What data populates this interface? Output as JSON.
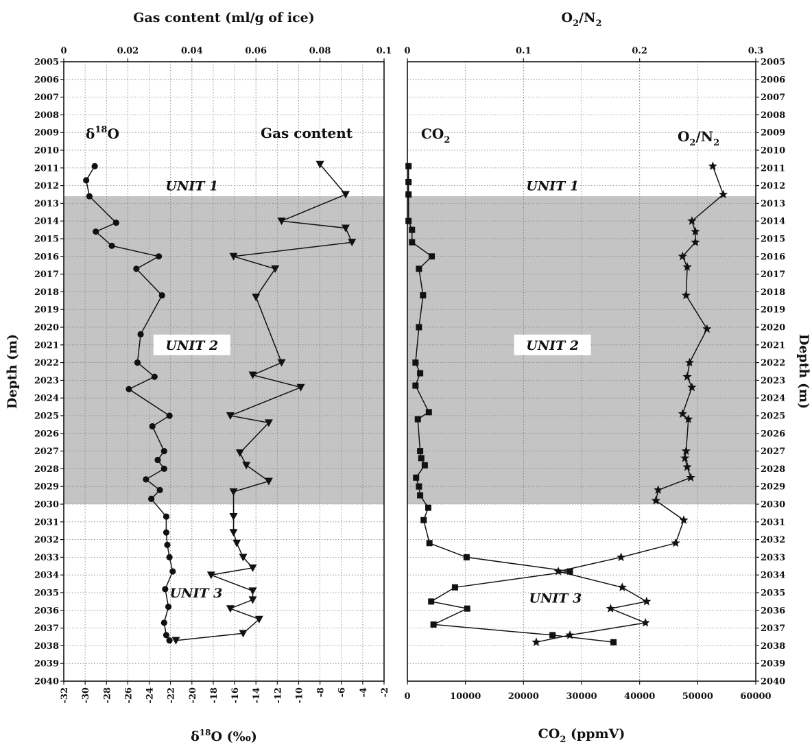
{
  "chart_data": [
    {
      "type": "line",
      "panel": "left",
      "title": "",
      "ylabel": "Depth (m)",
      "ylim": [
        2005,
        2040
      ],
      "yticks": [
        "2005",
        "2006",
        "2007",
        "2008",
        "2009",
        "2010",
        "2011",
        "2012",
        "2013",
        "2014",
        "2015",
        "2016",
        "2017",
        "2018",
        "2019",
        "2020",
        "2021",
        "2022",
        "2023",
        "2024",
        "2025",
        "2026",
        "2027",
        "2028",
        "2029",
        "2030",
        "2031",
        "2032",
        "2033",
        "2034",
        "2035",
        "2036",
        "2037",
        "2038",
        "2039",
        "2040"
      ],
      "x_top": {
        "label": "Gas content (ml/g of ice)",
        "xlim": [
          0,
          0.1
        ],
        "ticks": [
          "0",
          "0.02",
          "0.04",
          "0.06",
          "0.08",
          "0.1"
        ]
      },
      "x_bottom": {
        "label": "δ18O (‰)",
        "label_main": "δ",
        "label_sup": "18",
        "label_rest": "O (‰)",
        "xlim": [
          -32,
          -2
        ],
        "ticks": [
          "-32",
          "-30",
          "-28",
          "-26",
          "-24",
          "-22",
          "-20",
          "-18",
          "-16",
          "-14",
          "-12",
          "-10",
          "-8",
          "-6",
          "-4",
          "-2"
        ]
      },
      "series": [
        {
          "name": "δ18O",
          "label_main": "δ",
          "label_sup": "18",
          "label_rest": "O",
          "axis": "bottom",
          "marker": "circle",
          "x": [
            -29.1,
            -29.9,
            -29.6,
            -27.1,
            -29.0,
            -27.5,
            -23.1,
            -25.2,
            -22.8,
            -24.8,
            -25.1,
            -23.5,
            -25.9,
            -22.1,
            -23.7,
            -22.6,
            -23.2,
            -22.6,
            -24.3,
            -23.0,
            -23.8,
            -22.4,
            -22.4,
            -22.3,
            -22.1,
            -21.8,
            -22.5,
            -22.2,
            -22.6,
            -22.4,
            -22.1
          ],
          "y": [
            2010.9,
            2011.7,
            2012.6,
            2014.1,
            2014.6,
            2015.4,
            2016.0,
            2016.7,
            2018.2,
            2020.4,
            2022.0,
            2022.8,
            2023.5,
            2025.0,
            2025.6,
            2027.0,
            2027.5,
            2028.0,
            2028.6,
            2029.2,
            2029.7,
            2030.7,
            2031.6,
            2032.3,
            2033.0,
            2033.8,
            2034.8,
            2035.8,
            2036.7,
            2037.4,
            2037.7
          ]
        },
        {
          "name": "Gas content",
          "axis": "top",
          "marker": "triangle-down",
          "x": [
            0.08,
            0.088,
            0.068,
            0.088,
            0.09,
            0.053,
            0.066,
            0.06,
            0.068,
            0.059,
            0.074,
            0.052,
            0.064,
            0.055,
            0.057,
            0.064,
            0.053,
            0.053,
            0.053,
            0.054,
            0.056,
            0.059,
            0.046,
            0.059,
            0.059,
            0.052,
            0.061,
            0.056,
            0.035
          ],
          "y": [
            2010.8,
            2012.5,
            2014.0,
            2014.4,
            2015.2,
            2016.0,
            2016.7,
            2018.3,
            2022.0,
            2022.7,
            2023.4,
            2025.0,
            2025.4,
            2027.1,
            2027.8,
            2028.7,
            2029.3,
            2030.7,
            2031.6,
            2032.2,
            2033.0,
            2033.6,
            2034.0,
            2034.9,
            2035.4,
            2035.9,
            2036.5,
            2037.3,
            2037.7
          ]
        }
      ],
      "shaded_band": {
        "y": [
          2012.6,
          2030.0
        ],
        "color": "#c4c4c4"
      },
      "units": [
        {
          "text": "UNIT 1",
          "x": -20,
          "y": 2012.0
        },
        {
          "text": "UNIT 2",
          "x": -20,
          "y": 2021.0
        },
        {
          "text": "UNIT 3",
          "x": -19.6,
          "y": 2035.0
        }
      ],
      "grid": true
    },
    {
      "type": "line",
      "panel": "right",
      "title": "",
      "ylabel": "Depth (m)",
      "ylim": [
        2005,
        2040
      ],
      "yticks": [
        "2005",
        "2006",
        "2007",
        "2008",
        "2009",
        "2010",
        "2011",
        "2012",
        "2013",
        "2014",
        "2015",
        "2016",
        "2017",
        "2018",
        "2019",
        "2020",
        "2021",
        "2022",
        "2023",
        "2024",
        "2025",
        "2026",
        "2027",
        "2028",
        "2029",
        "2030",
        "2031",
        "2032",
        "2033",
        "2034",
        "2035",
        "2036",
        "2037",
        "2038",
        "2039",
        "2040"
      ],
      "x_top": {
        "label": "O2/N2",
        "label_main": "O",
        "label_sub1": "2",
        "label_mid": "/N",
        "label_sub2": "2",
        "xlim": [
          0,
          0.3
        ],
        "ticks": [
          "0",
          "0.1",
          "0.2",
          "0.3"
        ]
      },
      "x_bottom": {
        "label": "CO2 (ppmV)",
        "label_main": "CO",
        "label_sub": "2",
        "label_rest": " (ppmV)",
        "xlim": [
          0,
          60000
        ],
        "ticks": [
          "0",
          "10000",
          "20000",
          "30000",
          "40000",
          "50000",
          "60000"
        ]
      },
      "series": [
        {
          "name": "CO2",
          "label_main": "CO",
          "label_sub": "2",
          "axis": "bottom",
          "marker": "square",
          "x": [
            200,
            200,
            200,
            200,
            800,
            800,
            4200,
            2000,
            2700,
            2000,
            1400,
            2200,
            1400,
            3700,
            1800,
            2200,
            2400,
            3000,
            1500,
            2000,
            2200,
            3600,
            2800,
            3800,
            10200,
            28000,
            8200,
            4100,
            10300,
            4500,
            25000,
            35500
          ],
          "y": [
            2010.9,
            2011.8,
            2012.5,
            2014.0,
            2014.5,
            2015.2,
            2016.0,
            2016.7,
            2018.2,
            2020.0,
            2022.0,
            2022.6,
            2023.3,
            2024.8,
            2025.2,
            2027.0,
            2027.4,
            2027.8,
            2028.5,
            2029.0,
            2029.5,
            2030.2,
            2030.9,
            2032.2,
            2033.0,
            2033.8,
            2034.7,
            2035.5,
            2035.9,
            2036.8,
            2037.4,
            2037.8
          ]
        },
        {
          "name": "O2/N2",
          "label_main": "O",
          "label_sub1": "2",
          "label_mid": "/N",
          "label_sub2": "2",
          "axis": "top",
          "marker": "star",
          "x": [
            0.263,
            0.272,
            0.245,
            0.248,
            0.248,
            0.237,
            0.241,
            0.24,
            0.258,
            0.243,
            0.241,
            0.245,
            0.237,
            0.242,
            0.24,
            0.239,
            0.241,
            0.244,
            0.216,
            0.214,
            0.238,
            0.231,
            0.184,
            0.13,
            0.185,
            0.206,
            0.175,
            0.205,
            0.14,
            0.111
          ],
          "y": [
            2010.9,
            2012.5,
            2014.0,
            2014.6,
            2015.2,
            2016.0,
            2016.6,
            2018.2,
            2020.1,
            2022.0,
            2022.8,
            2023.4,
            2024.9,
            2025.2,
            2027.0,
            2027.4,
            2027.9,
            2028.5,
            2029.2,
            2029.8,
            2030.9,
            2032.2,
            2033.0,
            2033.8,
            2034.7,
            2035.5,
            2035.9,
            2036.7,
            2037.4,
            2037.8
          ]
        }
      ],
      "shaded_band": {
        "y": [
          2012.6,
          2030.0
        ],
        "color": "#c4c4c4"
      },
      "units": [
        {
          "text": "UNIT 1",
          "x": 25000,
          "y": 2012.0
        },
        {
          "text": "UNIT 2",
          "x": 25000,
          "y": 2021.0
        },
        {
          "text": "UNIT 3",
          "x": 25500,
          "y": 2035.3
        }
      ],
      "grid": true
    }
  ]
}
